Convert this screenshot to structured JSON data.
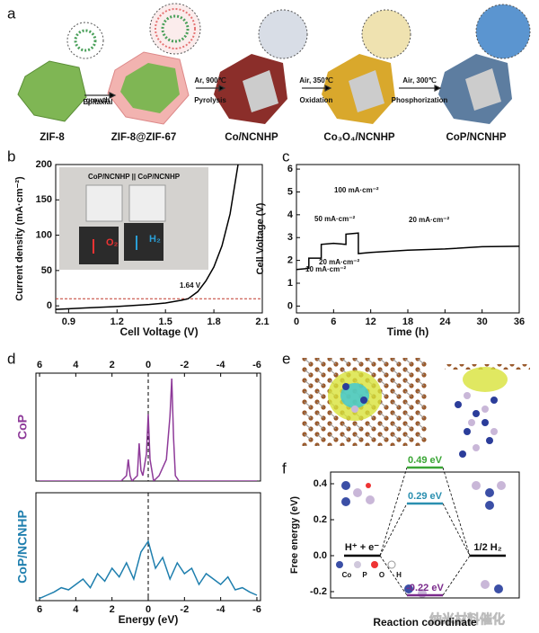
{
  "panel_labels": [
    "a",
    "b",
    "c",
    "d",
    "e",
    "f"
  ],
  "scheme": {
    "materials": [
      "ZIF-8",
      "ZIF-8@ZIF-67",
      "Co/NCNHP",
      "Co₃O₄/NCNHP",
      "CoP/NCNHP"
    ],
    "steps": [
      [
        "Epitaxial",
        "growth"
      ],
      [
        "Ar, 900℃",
        "Pyrolysis"
      ],
      [
        "Air, 350℃",
        "Oxidation"
      ],
      [
        "Air, 300℃",
        "Phosphorization"
      ]
    ]
  },
  "atom_legend": [
    "Co",
    "P",
    "O",
    "H"
  ],
  "watermark": "纳米材料催化",
  "chart_data": [
    {
      "type": "line",
      "xlabel": "Cell Voltage (V)",
      "ylabel": "Current density (mA·cm⁻²)",
      "x": [
        0.82,
        1.0,
        1.2,
        1.4,
        1.5,
        1.6,
        1.64,
        1.7,
        1.75,
        1.8,
        1.85,
        1.9,
        1.95
      ],
      "series": [
        {
          "color": "#000000",
          "values": [
            -5,
            -3,
            -1,
            2,
            4,
            8,
            10,
            20,
            35,
            55,
            85,
            130,
            200
          ]
        }
      ],
      "xlim": [
        0.82,
        2.1
      ],
      "ylim": [
        -10,
        200
      ],
      "xticks": [
        0.9,
        1.2,
        1.5,
        1.8,
        2.1
      ],
      "yticks": [
        0,
        50,
        100,
        150,
        200
      ],
      "hline": {
        "value": 10,
        "color": "#c0392b"
      },
      "annotations": [
        "1.64 V"
      ],
      "inset": {
        "title": "CoP/NCNHP || CoP/NCNHP",
        "labels": [
          "O₂",
          "H₂"
        ]
      }
    },
    {
      "type": "line",
      "xlabel": "Time (h)",
      "ylabel": "Cell Voltage (V)",
      "x": [
        0,
        2,
        2,
        4,
        4,
        6,
        6,
        8,
        8,
        10,
        10,
        12,
        18,
        24,
        30,
        36
      ],
      "series": [
        {
          "color": "#000000",
          "values": [
            1.6,
            1.65,
            2.1,
            2.1,
            2.7,
            2.75,
            2.75,
            2.7,
            3.15,
            3.2,
            2.3,
            2.35,
            2.45,
            2.5,
            2.6,
            2.62
          ]
        }
      ],
      "xlim": [
        0,
        36
      ],
      "ylim": [
        -0.3,
        6.2
      ],
      "xticks": [
        0,
        6,
        12,
        18,
        24,
        30,
        36
      ],
      "yticks": [
        0,
        1,
        2,
        3,
        4,
        5,
        6
      ],
      "annotations": [
        "10 mA·cm⁻²",
        "20 mA·cm⁻²",
        "50 mA·cm⁻²",
        "100 mA·cm⁻²",
        "20 mA·cm⁻²"
      ]
    },
    {
      "type": "line",
      "ylabel": "CoP",
      "x": [
        6,
        2,
        1.5,
        1.2,
        1.1,
        1.0,
        0.9,
        0.6,
        0.5,
        0.4,
        0.3,
        0.1,
        0,
        -0.1,
        -0.3,
        -0.6,
        -1.0,
        -1.2,
        -1.3,
        -1.4,
        -1.5,
        -1.7,
        -2,
        -6
      ],
      "series": [
        {
          "color": "#8e3a99",
          "values": [
            0,
            0,
            0,
            0.05,
            0.2,
            0.05,
            0,
            0.05,
            0.35,
            0.1,
            0.05,
            0.25,
            0.62,
            0.2,
            0,
            0.05,
            0.2,
            0.6,
            0.95,
            0.4,
            0.05,
            0,
            0,
            0
          ]
        }
      ],
      "xlim": [
        6.2,
        -6.2
      ],
      "ylim": [
        0,
        1
      ],
      "xticks": [
        6,
        4,
        2,
        0,
        -2,
        -4,
        -6
      ],
      "vline": 0
    },
    {
      "type": "line",
      "ylabel": "CoP/NCNHP",
      "xlabel": "Energy (eV)",
      "x": [
        6,
        5.6,
        5.2,
        4.8,
        4.4,
        4,
        3.6,
        3.2,
        2.8,
        2.4,
        2,
        1.6,
        1.2,
        0.8,
        0.4,
        0,
        -0.4,
        -0.8,
        -1.2,
        -1.6,
        -2,
        -2.4,
        -2.8,
        -3.2,
        -3.6,
        -4,
        -4.4,
        -4.8,
        -5.2,
        -5.6,
        -6
      ],
      "series": [
        {
          "color": "#1f7fae",
          "values": [
            0.02,
            0.05,
            0.08,
            0.12,
            0.1,
            0.15,
            0.2,
            0.12,
            0.25,
            0.18,
            0.3,
            0.22,
            0.35,
            0.2,
            0.45,
            0.55,
            0.3,
            0.4,
            0.2,
            0.35,
            0.25,
            0.3,
            0.15,
            0.25,
            0.2,
            0.15,
            0.22,
            0.1,
            0.12,
            0.08,
            0.05
          ]
        }
      ],
      "xlim": [
        6.2,
        -6.2
      ],
      "ylim": [
        0,
        1
      ],
      "xticks": [
        6,
        4,
        2,
        0,
        -2,
        -4,
        -6
      ],
      "vline": 0
    },
    {
      "type": "energy",
      "xlabel": "Reaction coordinate",
      "ylabel": "Free energy (eV)",
      "categories": [
        "H⁺ + e⁻",
        null,
        "1/2 H₂"
      ],
      "series": [
        {
          "color": "#000000",
          "values": [
            0,
            null,
            0
          ]
        },
        {
          "color": "#3aa635",
          "values": [
            null,
            0.49,
            null
          ],
          "value_labels": [
            null,
            "0.49 eV",
            null
          ]
        },
        {
          "color": "#2a8fb0",
          "values": [
            null,
            0.29,
            null
          ],
          "value_labels": [
            null,
            "0.29 eV",
            null
          ]
        },
        {
          "color": "#7b2b8c",
          "values": [
            null,
            -0.22,
            null
          ],
          "value_labels": [
            null,
            "-0.22 eV",
            null
          ]
        }
      ],
      "ylim": [
        -0.235,
        0.465
      ],
      "yticks": [
        0.4,
        0.2,
        {
          "value": 0,
          "label": "0.0"
        },
        -0.2
      ]
    }
  ]
}
